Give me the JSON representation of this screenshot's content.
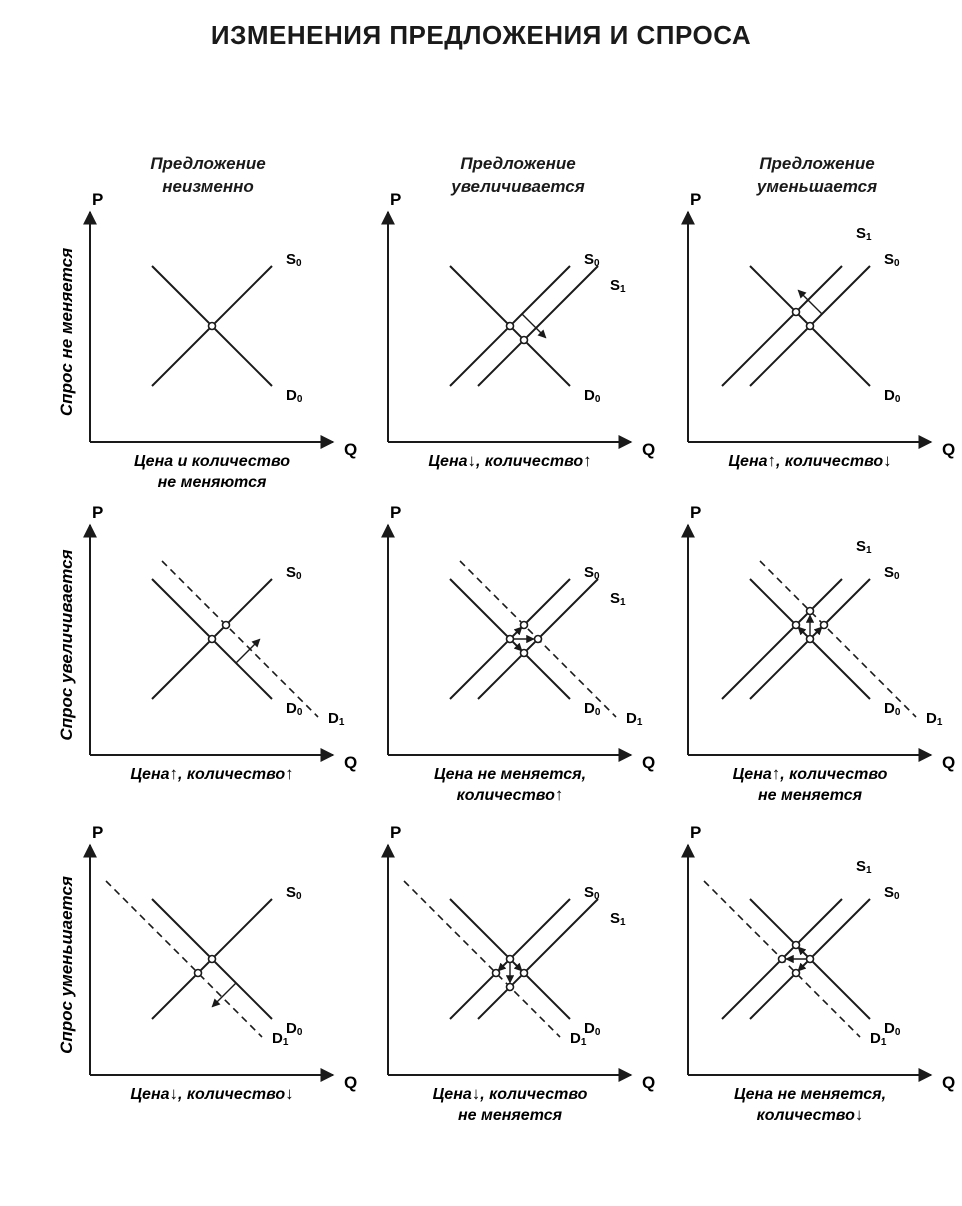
{
  "title": "ИЗМЕНЕНИЯ ПРЕДЛОЖЕНИЯ И СПРОСА",
  "column_headers": [
    {
      "line1": "Предложение",
      "line2": "неизменно"
    },
    {
      "line1": "Предложение",
      "line2": "увеличивается"
    },
    {
      "line1": "Предложение",
      "line2": "уменьшается"
    }
  ],
  "row_labels": [
    "Спрос не меняется",
    "Спрос увеличивается",
    "Спрос уменьшается"
  ],
  "axis_labels": {
    "price": "P",
    "quantity": "Q"
  },
  "panels": [
    {
      "supply": "unchanged",
      "demand": "unchanged",
      "caption": [
        [
          {
            "t": "Цена и количество"
          }
        ],
        [
          {
            "t": "не меняются"
          }
        ]
      ]
    },
    {
      "supply": "increase",
      "demand": "unchanged",
      "caption": [
        [
          {
            "t": "Цена"
          },
          {
            "a": "↓"
          },
          {
            "t": ", количество"
          },
          {
            "a": "↑"
          }
        ]
      ]
    },
    {
      "supply": "decrease",
      "demand": "unchanged",
      "caption": [
        [
          {
            "t": "Цена"
          },
          {
            "a": "↑"
          },
          {
            "t": ", количество"
          },
          {
            "a": "↓"
          }
        ]
      ]
    },
    {
      "supply": "unchanged",
      "demand": "increase",
      "caption": [
        [
          {
            "t": "Цена"
          },
          {
            "a": "↑"
          },
          {
            "t": ", количество"
          },
          {
            "a": "↑"
          }
        ]
      ]
    },
    {
      "supply": "increase",
      "demand": "increase",
      "caption": [
        [
          {
            "t": "Цена не меняется,"
          }
        ],
        [
          {
            "t": "количество"
          },
          {
            "a": "↑"
          }
        ]
      ]
    },
    {
      "supply": "decrease",
      "demand": "increase",
      "caption": [
        [
          {
            "t": "Цена"
          },
          {
            "a": "↑"
          },
          {
            "t": ", количество"
          }
        ],
        [
          {
            "t": "не меняется"
          }
        ]
      ]
    },
    {
      "supply": "unchanged",
      "demand": "decrease",
      "caption": [
        [
          {
            "t": "Цена"
          },
          {
            "a": "↓"
          },
          {
            "t": ", количество"
          },
          {
            "a": "↓"
          }
        ]
      ]
    },
    {
      "supply": "increase",
      "demand": "decrease",
      "caption": [
        [
          {
            "t": "Цена"
          },
          {
            "a": "↓"
          },
          {
            "t": ", количество"
          }
        ],
        [
          {
            "t": "не меняется"
          }
        ]
      ]
    },
    {
      "supply": "decrease",
      "demand": "decrease",
      "caption": [
        [
          {
            "t": "Цена  не меняется,"
          }
        ],
        [
          {
            "t": "количество"
          },
          {
            "a": "↓"
          }
        ]
      ]
    }
  ],
  "curve_labels": {
    "S0": {
      "main": "S",
      "sub": "0"
    },
    "S1": {
      "main": "S",
      "sub": "1"
    },
    "D0": {
      "main": "D",
      "sub": "0"
    },
    "D1": {
      "main": "D",
      "sub": "1"
    }
  }
}
